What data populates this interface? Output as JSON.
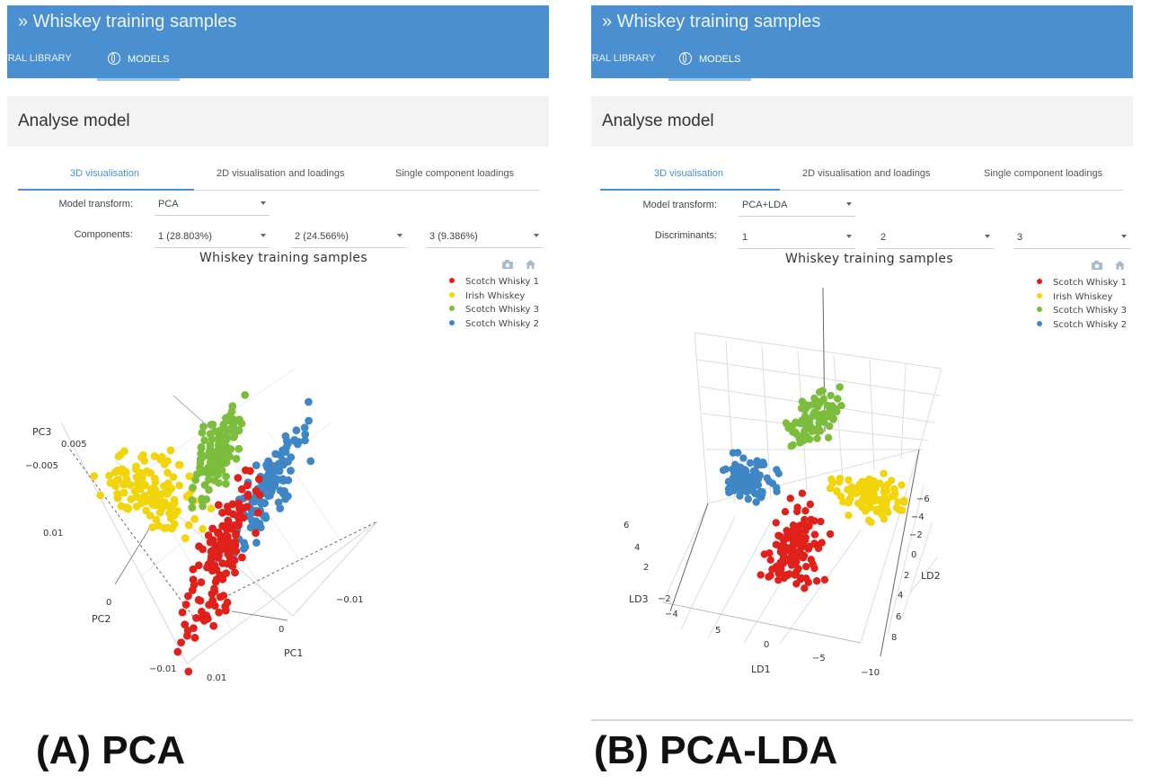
{
  "colors": {
    "scotch1": "#e0201a",
    "irish": "#f2d40a",
    "scotch3": "#7cbd3d",
    "scotch2": "#3f86c6",
    "accent": "#4a90d0"
  },
  "panels": [
    {
      "app": {
        "title": "» Whiskey training samples"
      },
      "nav": {
        "library_label": "TRAL LIBRARY",
        "models_label": "MODELS"
      },
      "page_title": "Analyse model",
      "tabs": [
        "3D visualisation",
        "2D visualisation and loadings",
        "Single component loadings"
      ],
      "controls": {
        "transform_label": "Model transform:",
        "transform_value": "PCA",
        "components_label": "Components:",
        "selects": [
          "1 (28.803%)",
          "2 (24.566%)",
          "3 (9.386%)"
        ]
      },
      "plot": {
        "title": "Whiskey training samples",
        "axis_titles": {
          "x": "PC1",
          "y": "PC2",
          "z": "PC3"
        },
        "tick_labels": [
          "0.005",
          "−0.005",
          "0.01",
          "0",
          "−0.01",
          "0.01",
          "0",
          "−0.01"
        ],
        "legend": [
          "Scotch Whisky 1",
          "Irish Whiskey",
          "Scotch Whisky 3",
          "Scotch Whisky 2"
        ]
      }
    },
    {
      "app": {
        "title": "» Whiskey training samples"
      },
      "nav": {
        "library_label": "TRAL LIBRARY",
        "models_label": "MODELS"
      },
      "page_title": "Analyse model",
      "tabs": [
        "3D visualisation",
        "2D visualisation and loadings",
        "Single component loadings"
      ],
      "controls": {
        "transform_label": "Model transform:",
        "transform_value": "PCA+LDA",
        "components_label": "Discriminants:",
        "selects": [
          "1",
          "2",
          "3"
        ]
      },
      "plot": {
        "title": "Whiskey training samples",
        "axis_titles": {
          "x": "LD1",
          "y": "LD2",
          "z": "LD3"
        },
        "tick_labels": [
          "6",
          "4",
          "2",
          "−2",
          "−4",
          "5",
          "0",
          "−5",
          "−10",
          "−6",
          "−4",
          "−2",
          "0",
          "2",
          "4",
          "6",
          "8"
        ],
        "legend": [
          "Scotch Whisky 1",
          "Irish Whiskey",
          "Scotch Whisky 3",
          "Scotch Whisky 2"
        ]
      }
    }
  ],
  "captions": [
    "(A) PCA",
    "(B) PCA-LDA"
  ]
}
